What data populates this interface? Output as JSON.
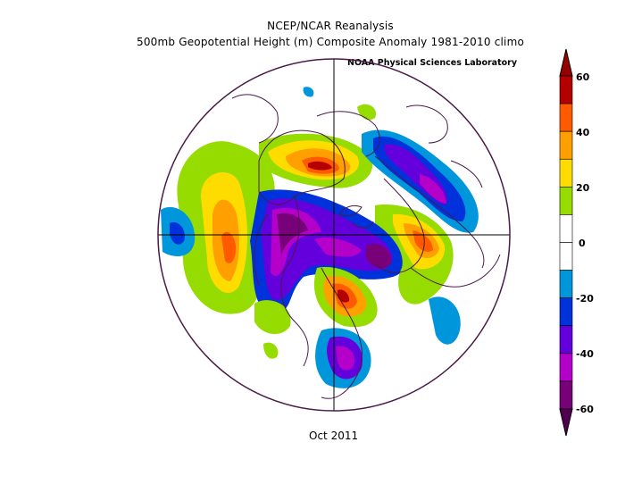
{
  "title_line1": "NCEP/NCAR Reanalysis",
  "title_line2": "500mb Geopotential Height (m) Composite Anomaly 1981-2010 climo",
  "credit": "NOAA Physical Sciences Laboratory",
  "date_label": "Oct 2011",
  "colorbar": {
    "ticks": [
      "60",
      "40",
      "20",
      "0",
      "-20",
      "-40",
      "-60"
    ],
    "colors": [
      "#b40000",
      "#ff5a00",
      "#ffa000",
      "#ffdc00",
      "#96dc00",
      "#ffffff",
      "#ffffff",
      "#0096dc",
      "#0032dc",
      "#6400dc",
      "#b400c8",
      "#780078"
    ]
  }
}
